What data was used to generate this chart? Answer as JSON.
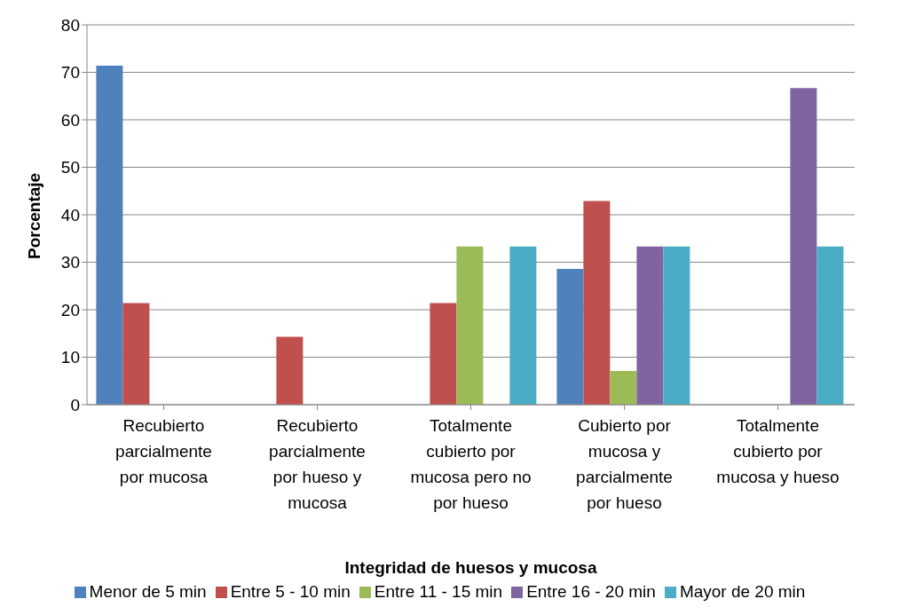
{
  "chart_data": {
    "type": "bar",
    "xlabel": "Integridad de huesos y mucosa",
    "ylabel": "Porcentaje",
    "categories": [
      "Recubierto parcialmente por mucosa",
      "Recubierto parcialmente por hueso y mucosa",
      "Totalmente cubierto por mucosa pero no por hueso",
      "Cubierto por mucosa y parcialmente por hueso",
      "Totalmente cubierto por mucosa y hueso"
    ],
    "series": [
      {
        "name": "Menor de 5 min",
        "color": "#4f81bd",
        "values": [
          71.4,
          null,
          null,
          28.6,
          null
        ]
      },
      {
        "name": "Entre 5 - 10 min",
        "color": "#c0504d",
        "values": [
          21.4,
          14.3,
          21.4,
          42.9,
          null
        ]
      },
      {
        "name": "Entre 11 - 15 min",
        "color": "#9bbb59",
        "values": [
          null,
          null,
          33.3,
          7.1,
          null
        ]
      },
      {
        "name": "Entre 16 - 20 min",
        "color": "#8064a2",
        "values": [
          null,
          null,
          null,
          33.3,
          66.7
        ]
      },
      {
        "name": "Mayor de 20 min",
        "color": "#4bacc6",
        "values": [
          null,
          null,
          33.3,
          33.3,
          33.3
        ]
      }
    ],
    "ylim": [
      0,
      80
    ],
    "yticks": [
      0,
      10,
      20,
      30,
      40,
      50,
      60,
      70,
      80
    ],
    "grid": "y",
    "legend": "bottom"
  }
}
